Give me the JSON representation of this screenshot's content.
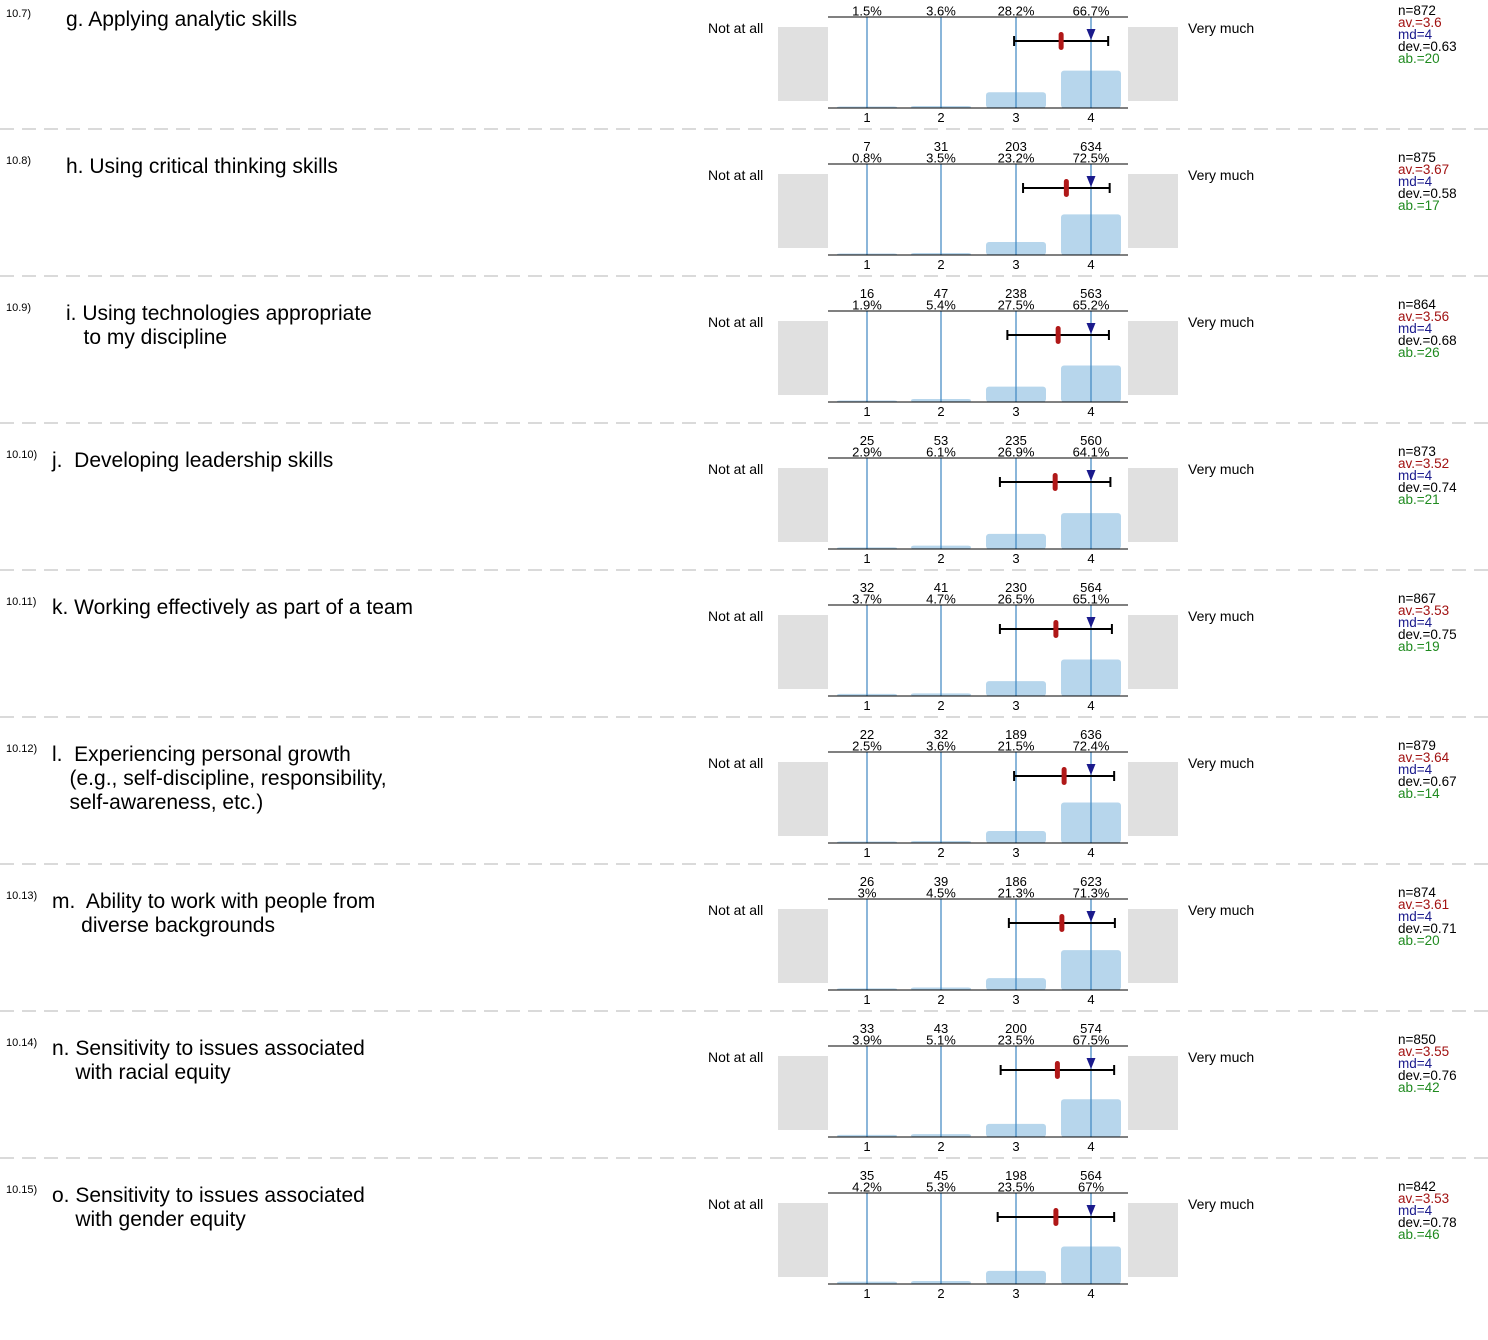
{
  "left_label": "Not at all",
  "right_label": "Very much",
  "colors": {
    "bar": "#b7d6ec",
    "gridline": "#3d86c1",
    "side_box": "#e0e0e0",
    "mean_marker": "#b01818",
    "median_marker": "#1a1a8c",
    "av_text": "#a11111",
    "md_text": "#1a1a8c",
    "ab_text": "#1f8a1f"
  },
  "chart_data": [
    {
      "type": "bar",
      "id": "10.7)",
      "question": "g. Applying analytic skills",
      "question_lines": [
        "g. Applying analytic skills"
      ],
      "categories": [
        "1",
        "2",
        "3",
        "4"
      ],
      "counts": null,
      "percents": [
        "1.5%",
        "3.6%",
        "28.2%",
        "66.7%"
      ],
      "values": [
        1.5,
        3.6,
        28.2,
        66.7
      ],
      "mean": 3.6,
      "median": 4,
      "sd": 0.63,
      "ci": [
        2.97,
        4.23
      ],
      "stats": {
        "n": "n=872",
        "av": "av.=3.6",
        "md": "md=4",
        "dev": "dev.=0.63",
        "ab": "ab.=20"
      }
    },
    {
      "type": "bar",
      "id": "10.8)",
      "question": "h. Using critical thinking skills",
      "question_lines": [
        "h. Using critical thinking skills"
      ],
      "categories": [
        "1",
        "2",
        "3",
        "4"
      ],
      "counts": [
        "7",
        "31",
        "203",
        "634"
      ],
      "percents": [
        "0.8%",
        "3.5%",
        "23.2%",
        "72.5%"
      ],
      "values": [
        0.8,
        3.5,
        23.2,
        72.5
      ],
      "mean": 3.67,
      "median": 4,
      "sd": 0.58,
      "ci": [
        3.09,
        4.25
      ],
      "stats": {
        "n": "n=875",
        "av": "av.=3.67",
        "md": "md=4",
        "dev": "dev.=0.58",
        "ab": "ab.=17"
      }
    },
    {
      "type": "bar",
      "id": "10.9)",
      "question": "i. Using technologies appropriate to my discipline",
      "question_lines": [
        "i. Using technologies appropriate",
        "   to my discipline"
      ],
      "categories": [
        "1",
        "2",
        "3",
        "4"
      ],
      "counts": [
        "16",
        "47",
        "238",
        "563"
      ],
      "percents": [
        "1.9%",
        "5.4%",
        "27.5%",
        "65.2%"
      ],
      "values": [
        1.9,
        5.4,
        27.5,
        65.2
      ],
      "mean": 3.56,
      "median": 4,
      "sd": 0.68,
      "ci": [
        2.88,
        4.24
      ],
      "stats": {
        "n": "n=864",
        "av": "av.=3.56",
        "md": "md=4",
        "dev": "dev.=0.68",
        "ab": "ab.=26"
      }
    },
    {
      "type": "bar",
      "id": "10.10)",
      "question": "j. Developing leadership skills",
      "question_lines": [
        "j.  Developing leadership skills"
      ],
      "categories": [
        "1",
        "2",
        "3",
        "4"
      ],
      "counts": [
        "25",
        "53",
        "235",
        "560"
      ],
      "percents": [
        "2.9%",
        "6.1%",
        "26.9%",
        "64.1%"
      ],
      "values": [
        2.9,
        6.1,
        26.9,
        64.1
      ],
      "mean": 3.52,
      "median": 4,
      "sd": 0.74,
      "ci": [
        2.78,
        4.26
      ],
      "stats": {
        "n": "n=873",
        "av": "av.=3.52",
        "md": "md=4",
        "dev": "dev.=0.74",
        "ab": "ab.=21"
      }
    },
    {
      "type": "bar",
      "id": "10.11)",
      "question": "k. Working effectively as part of a team",
      "question_lines": [
        "k. Working effectively as part of a team"
      ],
      "categories": [
        "1",
        "2",
        "3",
        "4"
      ],
      "counts": [
        "32",
        "41",
        "230",
        "564"
      ],
      "percents": [
        "3.7%",
        "4.7%",
        "26.5%",
        "65.1%"
      ],
      "values": [
        3.7,
        4.7,
        26.5,
        65.1
      ],
      "mean": 3.53,
      "median": 4,
      "sd": 0.75,
      "ci": [
        2.78,
        4.28
      ],
      "stats": {
        "n": "n=867",
        "av": "av.=3.53",
        "md": "md=4",
        "dev": "dev.=0.75",
        "ab": "ab.=19"
      }
    },
    {
      "type": "bar",
      "id": "10.12)",
      "question": "l. Experiencing personal growth (e.g., self-discipline, responsibility, self-awareness, etc.)",
      "question_lines": [
        "l.  Experiencing personal growth",
        "   (e.g., self-discipline, responsibility,",
        "   self-awareness, etc.)"
      ],
      "categories": [
        "1",
        "2",
        "3",
        "4"
      ],
      "counts": [
        "22",
        "32",
        "189",
        "636"
      ],
      "percents": [
        "2.5%",
        "3.6%",
        "21.5%",
        "72.4%"
      ],
      "values": [
        2.5,
        3.6,
        21.5,
        72.4
      ],
      "mean": 3.64,
      "median": 4,
      "sd": 0.67,
      "ci": [
        2.97,
        4.31
      ],
      "stats": {
        "n": "n=879",
        "av": "av.=3.64",
        "md": "md=4",
        "dev": "dev.=0.67",
        "ab": "ab.=14"
      }
    },
    {
      "type": "bar",
      "id": "10.13)",
      "question": "m. Ability to work with people from diverse backgrounds",
      "question_lines": [
        "m.  Ability to work with people from",
        "     diverse backgrounds"
      ],
      "categories": [
        "1",
        "2",
        "3",
        "4"
      ],
      "counts": [
        "26",
        "39",
        "186",
        "623"
      ],
      "percents": [
        "3%",
        "4.5%",
        "21.3%",
        "71.3%"
      ],
      "values": [
        3,
        4.5,
        21.3,
        71.3
      ],
      "mean": 3.61,
      "median": 4,
      "sd": 0.71,
      "ci": [
        2.9,
        4.32
      ],
      "stats": {
        "n": "n=874",
        "av": "av.=3.61",
        "md": "md=4",
        "dev": "dev.=0.71",
        "ab": "ab.=20"
      }
    },
    {
      "type": "bar",
      "id": "10.14)",
      "question": "n. Sensitivity to issues associated with racial equity",
      "question_lines": [
        "n. Sensitivity to issues associated",
        "    with racial equity"
      ],
      "categories": [
        "1",
        "2",
        "3",
        "4"
      ],
      "counts": [
        "33",
        "43",
        "200",
        "574"
      ],
      "percents": [
        "3.9%",
        "5.1%",
        "23.5%",
        "67.5%"
      ],
      "values": [
        3.9,
        5.1,
        23.5,
        67.5
      ],
      "mean": 3.55,
      "median": 4,
      "sd": 0.76,
      "ci": [
        2.79,
        4.31
      ],
      "stats": {
        "n": "n=850",
        "av": "av.=3.55",
        "md": "md=4",
        "dev": "dev.=0.76",
        "ab": "ab.=42"
      }
    },
    {
      "type": "bar",
      "id": "10.15)",
      "question": "o. Sensitivity to issues associated with gender equity",
      "question_lines": [
        "o. Sensitivity to issues associated",
        "    with gender equity"
      ],
      "categories": [
        "1",
        "2",
        "3",
        "4"
      ],
      "counts": [
        "35",
        "45",
        "198",
        "564"
      ],
      "percents": [
        "4.2%",
        "5.3%",
        "23.5%",
        "67%"
      ],
      "values": [
        4.2,
        5.3,
        23.5,
        67
      ],
      "mean": 3.53,
      "median": 4,
      "sd": 0.78,
      "ci": [
        2.75,
        4.31
      ],
      "stats": {
        "n": "n=842",
        "av": "av.=3.53",
        "md": "md=4",
        "dev": "dev.=0.78",
        "ab": "ab.=46"
      }
    }
  ]
}
